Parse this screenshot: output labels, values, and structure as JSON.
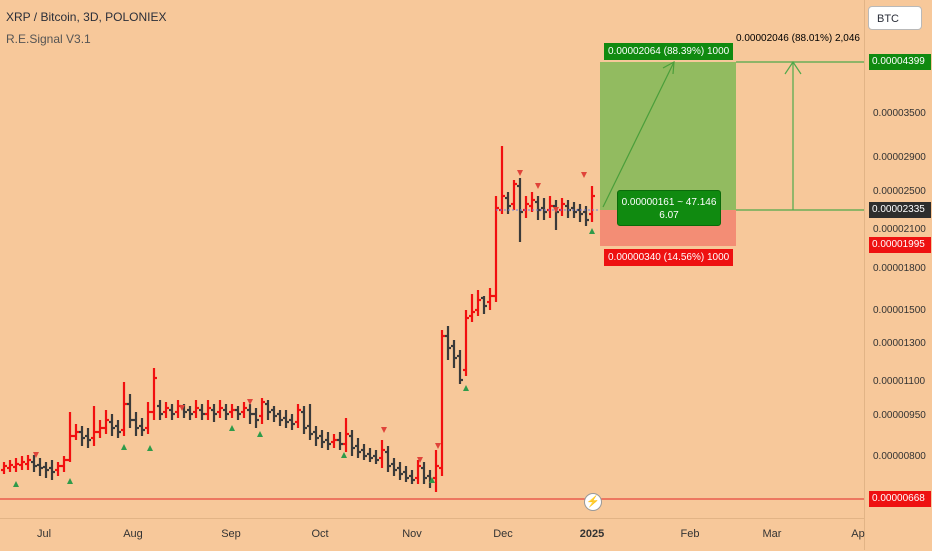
{
  "header": {
    "title": "XRP / Bitcoin, 3D, POLONIEX",
    "indicator": "R.E.Signal V3.1",
    "currency_button": "BTC"
  },
  "price_axis": {
    "ticks": [
      "0.00003500",
      "0.00002900",
      "0.00002500",
      "0.00002100",
      "0.00001800",
      "0.00001500",
      "0.00001300",
      "0.00001100",
      "0.00000950",
      "0.00000800"
    ],
    "target_label": "0.00004399",
    "current_label": "0.00002335",
    "stop_label": "0.00001995",
    "support_label": "0.00000668"
  },
  "time_axis": {
    "ticks": [
      "Jul",
      "Aug",
      "Sep",
      "Oct",
      "Nov",
      "Dec",
      "2025",
      "Feb",
      "Mar",
      "Ap"
    ]
  },
  "position": {
    "profit_label": "0.00002064 (88.39%) 1000",
    "stop_box_label": "0.00000340 (14.56%) 1000",
    "entry_line1": "0.00000161 ~ 47.146",
    "entry_line2": "6.07",
    "measure_label": "0.00002046 (88.01%) 2,046"
  },
  "colors": {
    "bull": "#f20f0f",
    "bear": "#3a3a3a",
    "profit_zone": "#8cbb5d",
    "stop_zone": "#f28a73",
    "green_label": "#108a10",
    "red_label": "#ee1111",
    "background": "#f7c89a"
  },
  "icons": {
    "event_marker": "lightning-icon"
  }
}
